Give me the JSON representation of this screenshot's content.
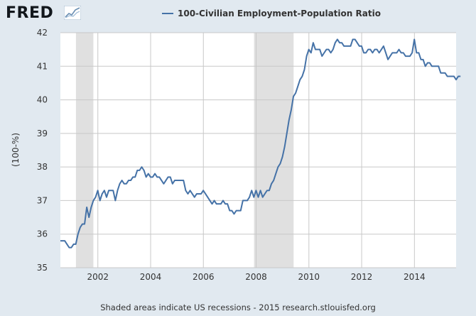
{
  "header": {
    "logo_text": "FRED",
    "logo_icon": "chart-line-icon"
  },
  "caption": "Shaded areas indicate US recessions - 2015 research.stlouisfed.org",
  "colors": {
    "background": "#e1e9f0",
    "plot_background": "#ffffff",
    "line": "#4572a7",
    "recession": "#e0e0e0",
    "grid": "#c8c8c8"
  },
  "chart_data": {
    "type": "line",
    "title": "",
    "xlabel": "",
    "ylabel": "(100-%)",
    "ylim": [
      35,
      42
    ],
    "xlim": [
      2000.58,
      2015.58
    ],
    "x_ticks": [
      "2002",
      "2004",
      "2006",
      "2008",
      "2010",
      "2012",
      "2014"
    ],
    "x_tick_values": [
      2002,
      2004,
      2006,
      2008,
      2010,
      2012,
      2014
    ],
    "y_ticks": [
      35,
      36,
      37,
      38,
      39,
      40,
      41,
      42
    ],
    "grid": true,
    "legend_position": "top",
    "recessions": [
      [
        2001.17,
        2001.83
      ],
      [
        2007.92,
        2009.42
      ]
    ],
    "series": [
      {
        "name": "100-Civilian Employment-Population Ratio",
        "x_start": 2000.58,
        "x_step": 0.083333,
        "values": [
          35.8,
          35.8,
          35.8,
          35.7,
          35.6,
          35.6,
          35.7,
          35.7,
          36.0,
          36.2,
          36.3,
          36.3,
          36.8,
          36.5,
          36.8,
          37.0,
          37.1,
          37.3,
          37.0,
          37.2,
          37.3,
          37.1,
          37.3,
          37.3,
          37.3,
          37.0,
          37.3,
          37.5,
          37.6,
          37.5,
          37.5,
          37.6,
          37.6,
          37.7,
          37.7,
          37.9,
          37.9,
          38.0,
          37.9,
          37.7,
          37.8,
          37.7,
          37.7,
          37.8,
          37.7,
          37.7,
          37.6,
          37.5,
          37.6,
          37.7,
          37.7,
          37.5,
          37.6,
          37.6,
          37.6,
          37.6,
          37.6,
          37.3,
          37.2,
          37.3,
          37.2,
          37.1,
          37.2,
          37.2,
          37.2,
          37.3,
          37.2,
          37.1,
          37.0,
          36.9,
          37.0,
          36.9,
          36.9,
          36.9,
          37.0,
          36.9,
          36.9,
          36.7,
          36.7,
          36.6,
          36.7,
          36.7,
          36.7,
          37.0,
          37.0,
          37.0,
          37.1,
          37.3,
          37.1,
          37.3,
          37.1,
          37.3,
          37.1,
          37.2,
          37.3,
          37.3,
          37.5,
          37.6,
          37.8,
          38.0,
          38.1,
          38.3,
          38.6,
          39.0,
          39.4,
          39.7,
          40.1,
          40.2,
          40.4,
          40.6,
          40.7,
          40.9,
          41.3,
          41.5,
          41.4,
          41.7,
          41.5,
          41.5,
          41.5,
          41.3,
          41.4,
          41.5,
          41.5,
          41.4,
          41.5,
          41.7,
          41.8,
          41.7,
          41.7,
          41.6,
          41.6,
          41.6,
          41.6,
          41.8,
          41.8,
          41.7,
          41.6,
          41.6,
          41.4,
          41.4,
          41.5,
          41.5,
          41.4,
          41.5,
          41.5,
          41.4,
          41.5,
          41.6,
          41.4,
          41.2,
          41.3,
          41.4,
          41.4,
          41.4,
          41.5,
          41.4,
          41.4,
          41.3,
          41.3,
          41.3,
          41.4,
          41.8,
          41.4,
          41.4,
          41.2,
          41.2,
          41.0,
          41.1,
          41.1,
          41.0,
          41.0,
          41.0,
          41.0,
          40.8,
          40.8,
          40.8,
          40.7,
          40.7,
          40.7,
          40.7,
          40.6,
          40.7,
          40.7
        ]
      }
    ]
  }
}
